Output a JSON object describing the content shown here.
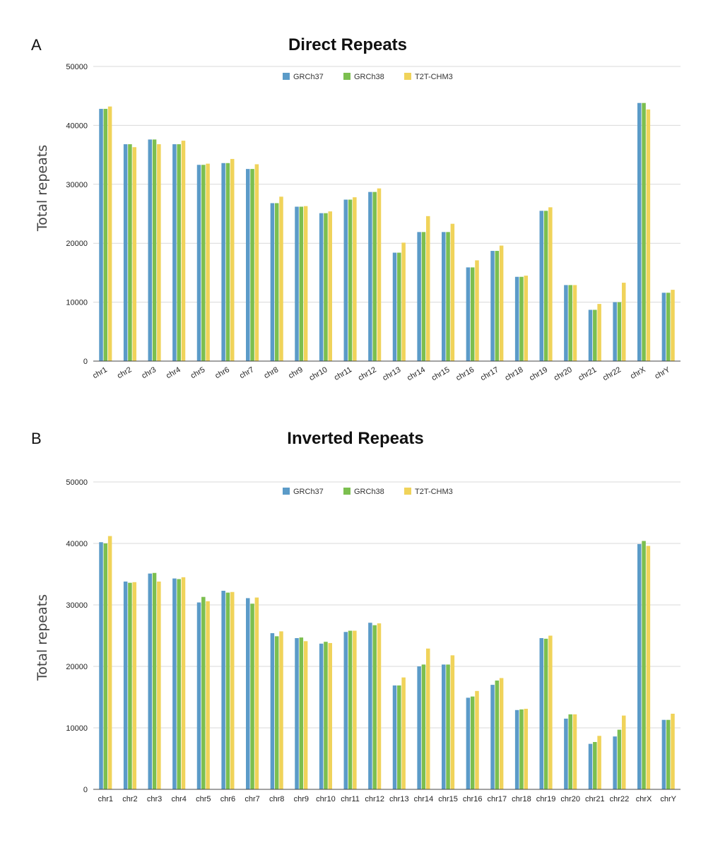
{
  "chart_data": [
    {
      "panel": "A",
      "type": "bar",
      "title": "Direct Repeats",
      "xlabel": "",
      "ylabel": "Total repeats",
      "ylim": [
        0,
        50000
      ],
      "yticks": [
        0,
        10000,
        20000,
        30000,
        40000,
        50000
      ],
      "x_tick_rotation": "rotated",
      "legend_position": "top-center",
      "categories": [
        "chr1",
        "chr2",
        "chr3",
        "chr4",
        "chr5",
        "chr6",
        "chr7",
        "chr8",
        "chr9",
        "chr10",
        "chr11",
        "chr12",
        "chr13",
        "chr14",
        "chr15",
        "chr16",
        "chr17",
        "chr18",
        "chr19",
        "chr20",
        "chr21",
        "chr22",
        "chrX",
        "chrY"
      ],
      "series": [
        {
          "name": "GRCh37",
          "color": "#5b9bc8",
          "values": [
            42800,
            36800,
            37600,
            36800,
            33300,
            33600,
            32600,
            26800,
            26200,
            25100,
            27400,
            28700,
            18400,
            21900,
            21900,
            15900,
            18700,
            14300,
            25500,
            12900,
            8700,
            10000,
            43800,
            11600
          ]
        },
        {
          "name": "GRCh38",
          "color": "#7cbf4f",
          "values": [
            42800,
            36800,
            37600,
            36800,
            33300,
            33600,
            32600,
            26800,
            26200,
            25100,
            27400,
            28700,
            18400,
            21900,
            21900,
            15900,
            18700,
            14300,
            25500,
            12900,
            8700,
            10000,
            43800,
            11600
          ]
        },
        {
          "name": "T2T-CHM3",
          "color": "#f0d35a",
          "values": [
            43200,
            36300,
            36800,
            37400,
            33500,
            34300,
            33400,
            27900,
            26300,
            25400,
            27800,
            29300,
            20100,
            24600,
            23300,
            17100,
            19600,
            14500,
            26100,
            12900,
            9700,
            13300,
            42700,
            12100
          ]
        }
      ]
    },
    {
      "panel": "B",
      "type": "bar",
      "title": "Inverted Repeats",
      "xlabel": "",
      "ylabel": "Total repeats",
      "ylim": [
        0,
        50000
      ],
      "yticks": [
        0,
        10000,
        20000,
        30000,
        40000,
        50000
      ],
      "x_tick_rotation": "horizontal",
      "legend_position": "top-center",
      "categories": [
        "chr1",
        "chr2",
        "chr3",
        "chr4",
        "chr5",
        "chr6",
        "chr7",
        "chr8",
        "chr9",
        "chr10",
        "chr11",
        "chr12",
        "chr13",
        "chr14",
        "chr15",
        "chr16",
        "chr17",
        "chr18",
        "chr19",
        "chr20",
        "chr21",
        "chr22",
        "chrX",
        "chrY"
      ],
      "series": [
        {
          "name": "GRCh37",
          "color": "#5b9bc8",
          "values": [
            40200,
            33800,
            35100,
            34300,
            30400,
            32300,
            31100,
            25400,
            24600,
            23700,
            25600,
            27100,
            16900,
            20000,
            20300,
            14900,
            17000,
            12900,
            24600,
            11500,
            7400,
            8600,
            39900,
            11300
          ]
        },
        {
          "name": "GRCh38",
          "color": "#7cbf4f",
          "values": [
            40000,
            33600,
            35200,
            34200,
            31300,
            32000,
            30200,
            24900,
            24700,
            24000,
            25800,
            26700,
            16900,
            20300,
            20300,
            15100,
            17700,
            13000,
            24500,
            12200,
            7700,
            9700,
            40400,
            11300
          ]
        },
        {
          "name": "T2T-CHM3",
          "color": "#f0d35a",
          "values": [
            41200,
            33700,
            33800,
            34500,
            30600,
            32100,
            31200,
            25700,
            24100,
            23800,
            25800,
            27000,
            18200,
            22900,
            21800,
            16000,
            18100,
            13100,
            25000,
            12200,
            8700,
            12000,
            39600,
            12300
          ]
        }
      ]
    }
  ]
}
